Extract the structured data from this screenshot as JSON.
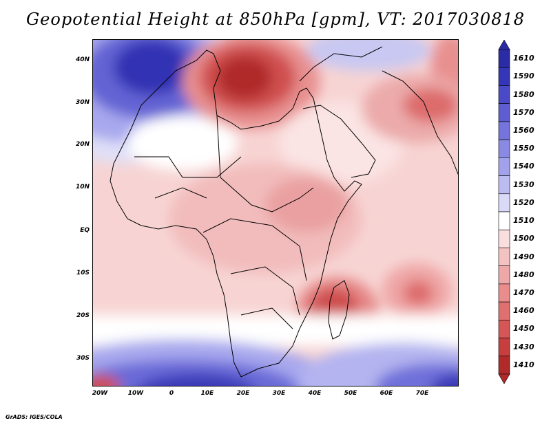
{
  "title": "Geopotential Height at 850hPa [gpm], VT: 2017030818",
  "footer": "GrADS: IGES/COLA",
  "axes": {
    "lat_labels": [
      "40N",
      "30N",
      "20N",
      "10N",
      "EQ",
      "10S",
      "20S",
      "30S"
    ],
    "lon_labels": [
      "20W",
      "10W",
      "0",
      "10E",
      "20E",
      "30E",
      "40E",
      "50E",
      "60E",
      "70E"
    ]
  },
  "colorbar": {
    "labels": [
      "1610",
      "1590",
      "1580",
      "1570",
      "1560",
      "1550",
      "1540",
      "1530",
      "1520",
      "1510",
      "1500",
      "1490",
      "1480",
      "1470",
      "1460",
      "1450",
      "1430",
      "1410"
    ],
    "colors": [
      "#2b2ba6",
      "#3535b8",
      "#4a4ac6",
      "#5e5ed2",
      "#7474dc",
      "#8a8ae4",
      "#a2a2ec",
      "#bcbcf2",
      "#dadaf8",
      "#ffffff",
      "#fadede",
      "#f5c2c2",
      "#efa8a8",
      "#e88c8c",
      "#e07070",
      "#d55656",
      "#c63e3e",
      "#b02a2a"
    ]
  }
}
